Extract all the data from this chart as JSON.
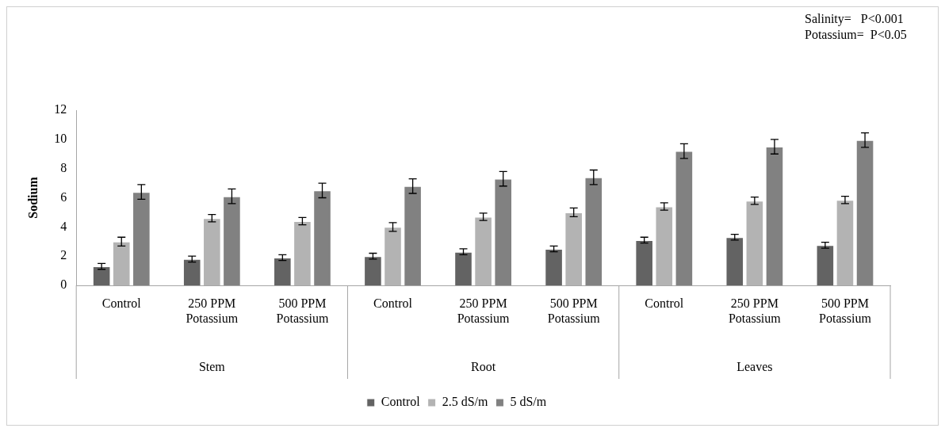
{
  "chart_data": {
    "type": "bar",
    "ylabel": "Sodium",
    "categories": [
      "Control",
      "250 PPM Potassium",
      "500 PPM Potassium",
      "Control",
      "250 PPM Potassium",
      "500 PPM Potassium",
      "Control",
      "250 PPM Potassium",
      "500 PPM Potassium"
    ],
    "series": [
      {
        "name": "Control",
        "color": "#636363",
        "values": [
          1.3,
          1.8,
          1.9,
          2.0,
          2.3,
          2.5,
          3.1,
          3.3,
          2.75
        ],
        "errors": [
          0.2,
          0.2,
          0.2,
          0.2,
          0.2,
          0.2,
          0.2,
          0.2,
          0.2
        ]
      },
      {
        "name": "2.5 dS/m",
        "color": "#b3b3b3",
        "values": [
          3.0,
          4.6,
          4.4,
          4.0,
          4.7,
          5.0,
          5.4,
          5.8,
          5.85
        ],
        "errors": [
          0.3,
          0.25,
          0.25,
          0.3,
          0.25,
          0.3,
          0.25,
          0.25,
          0.25
        ]
      },
      {
        "name": "5 dS/m",
        "color": "#818181",
        "values": [
          6.4,
          6.1,
          6.5,
          6.8,
          7.3,
          7.4,
          9.2,
          9.5,
          9.95
        ],
        "errors": [
          0.5,
          0.5,
          0.5,
          0.5,
          0.5,
          0.5,
          0.5,
          0.5,
          0.5
        ]
      }
    ],
    "ylim": [
      0,
      12
    ],
    "yticks": [
      0,
      2,
      4,
      6,
      8,
      10,
      12
    ],
    "grid": false,
    "legend": "bottom",
    "annotations": [
      "Salinity=   P<0.001",
      "Potassium=  P<0.05",
      "Stem",
      "Root",
      "Leaves"
    ]
  }
}
